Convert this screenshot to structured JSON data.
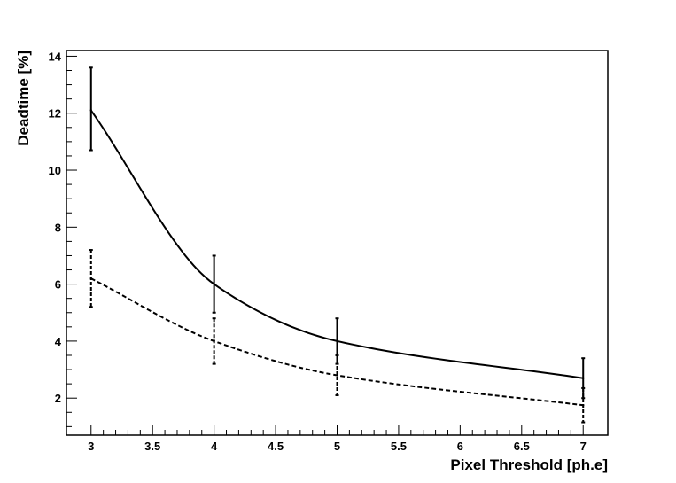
{
  "chart_data": {
    "type": "line",
    "xlabel": "Pixel Threshold [ph.e]",
    "ylabel": "Deadtime [%]",
    "xlim": [
      2.8,
      7.2
    ],
    "ylim": [
      0.7,
      14.2
    ],
    "x_ticks": [
      "3",
      "3.5",
      "4",
      "4.5",
      "5",
      "5.5",
      "6",
      "6.5",
      "7"
    ],
    "y_ticks": [
      "2",
      "4",
      "6",
      "8",
      "10",
      "12",
      "14"
    ],
    "grid": false,
    "legend": "none",
    "series": [
      {
        "line_style": "solid",
        "color": "#000000",
        "x": [
          3,
          4,
          5,
          7
        ],
        "y": [
          12.1,
          6.0,
          4.0,
          2.7
        ],
        "err_low": [
          1.4,
          1.0,
          0.8,
          0.7
        ],
        "err_high": [
          1.5,
          1.0,
          0.8,
          0.7
        ]
      },
      {
        "line_style": "dashed",
        "color": "#000000",
        "x": [
          3,
          4,
          5,
          7
        ],
        "y": [
          6.2,
          4.0,
          2.8,
          1.75
        ],
        "err_low": [
          1.0,
          0.8,
          0.7,
          0.6
        ],
        "err_high": [
          1.0,
          0.8,
          0.7,
          0.6
        ]
      }
    ]
  }
}
